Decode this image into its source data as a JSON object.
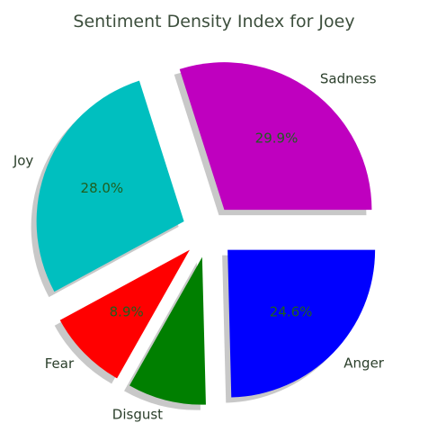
{
  "chart_data": {
    "type": "pie",
    "title": "Sentiment Density Index for Joey",
    "slices": [
      {
        "label": "Sadness",
        "value": 29.9,
        "pct_text": "29.9%",
        "color": "#bf00bf",
        "explode": true
      },
      {
        "label": "Joy",
        "value": 28.0,
        "pct_text": "28.0%",
        "color": "#00bfbf",
        "explode": true
      },
      {
        "label": "Fear",
        "value": 8.9,
        "pct_text": "8.9%",
        "color": "#ff0000",
        "explode": true
      },
      {
        "label": "Disgust",
        "value": 8.6,
        "pct_text": "",
        "color": "#007f00",
        "explode": true
      },
      {
        "label": "Anger",
        "value": 24.6,
        "pct_text": "24.6%",
        "color": "#0000ff",
        "explode": true
      }
    ],
    "start_angle_deg": 0,
    "direction": "counterclockwise",
    "shadow": true
  }
}
